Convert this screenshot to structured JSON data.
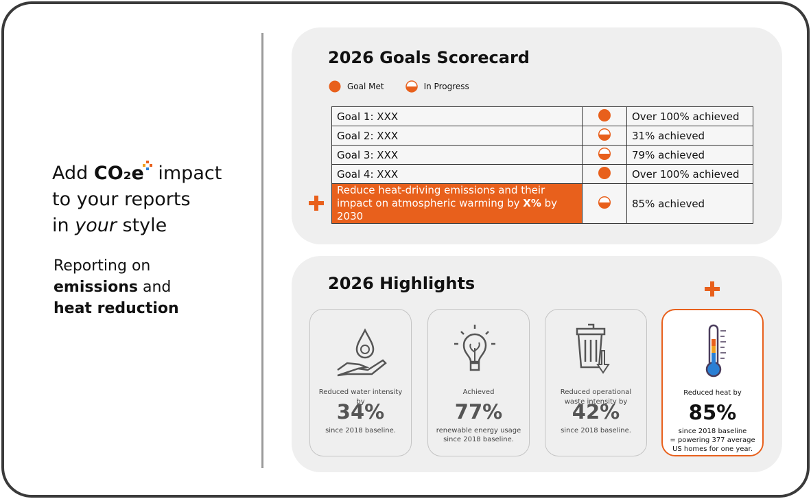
{
  "intro": {
    "headline": {
      "before": "Add",
      "brand": "CO₂e",
      "after": "impact",
      "line2": "to your reports",
      "line3_before": "in",
      "line3_emphasis": "your",
      "line3_after": "style"
    },
    "subtitle": {
      "line1": "Reporting on",
      "bold1": "emissions",
      "and": "and",
      "bold2": "heat reduction"
    }
  },
  "scorecard": {
    "title": "2026 Goals Scorecard",
    "legend": {
      "met": "Goal Met",
      "progress": "In Progress"
    },
    "rows": [
      {
        "goal": "Goal 1: XXX",
        "status": "met",
        "result": "Over 100% achieved"
      },
      {
        "goal": "Goal 2: XXX",
        "status": "progress",
        "result": "31% achieved"
      },
      {
        "goal": "Goal 3: XXX",
        "status": "progress",
        "result": "79% achieved"
      },
      {
        "goal": "Goal 4: XXX",
        "status": "met",
        "result": "Over 100% achieved"
      },
      {
        "goal": {
          "before": "Reduce heat-driving emissions and their impact on atmospheric warming by",
          "bold": "X%",
          "after": "by 2030"
        },
        "status": "progress",
        "result": "85% achieved",
        "highlight": true
      }
    ]
  },
  "highlights": {
    "title": "2026 Highlights",
    "cards": [
      {
        "icon": "water",
        "caption": "Reduced water intensity by",
        "value": "34%",
        "notes": [
          "since 2018 baseline."
        ]
      },
      {
        "icon": "bulb",
        "caption": "Achieved",
        "value": "77%",
        "notes": [
          "renewable energy usage since 2018 baseline."
        ]
      },
      {
        "icon": "bin",
        "caption": "Reduced operational waste intensity by",
        "value": "42%",
        "notes": [
          "since 2018 baseline."
        ]
      },
      {
        "icon": "thermo",
        "caption": "Reduced heat by",
        "value": "85%",
        "notes": [
          "since 2018 baseline",
          "= powering 377 average US homes for one year."
        ],
        "highlight": true
      }
    ]
  }
}
